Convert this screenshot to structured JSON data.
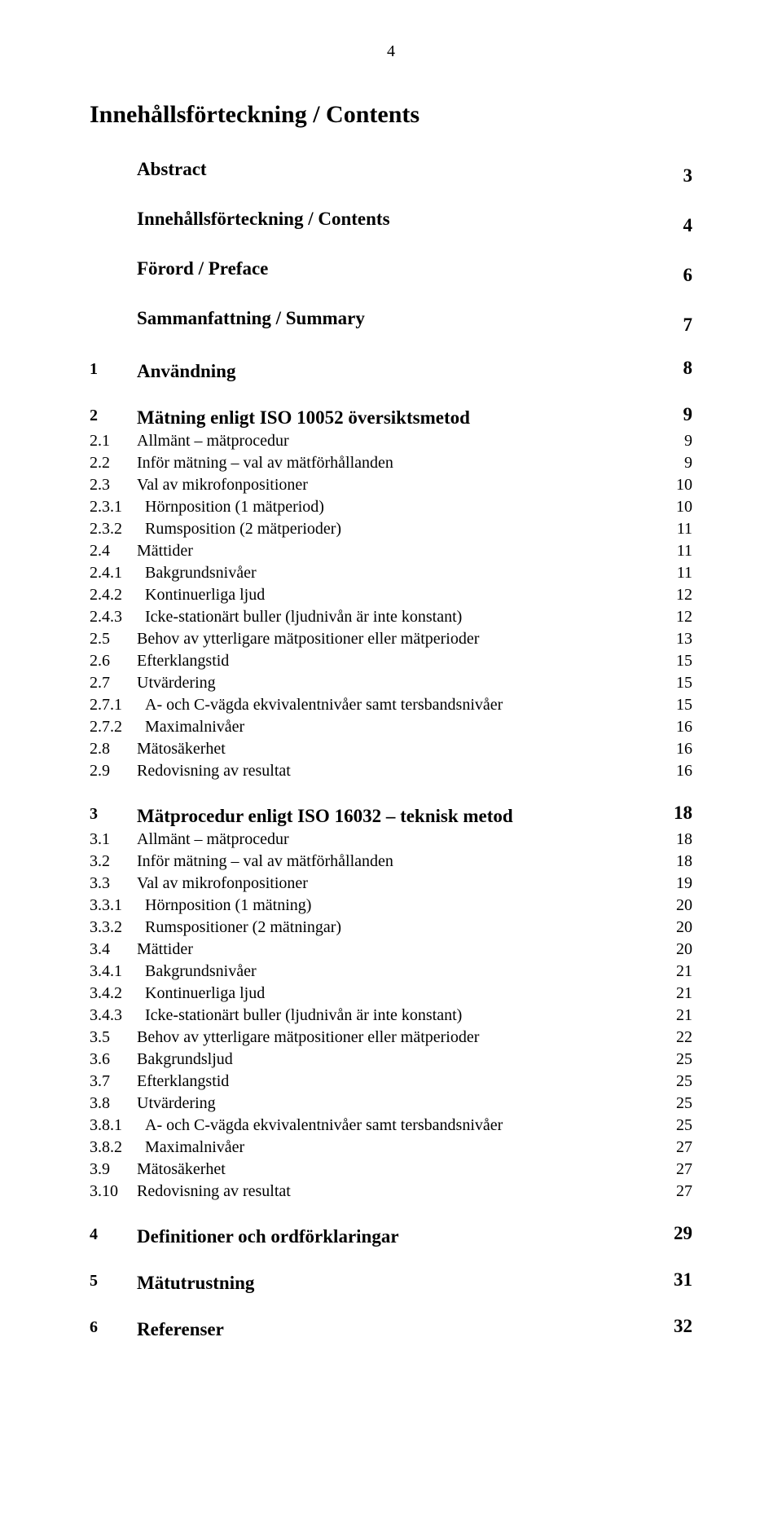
{
  "page_number": "4",
  "doc_title": "Innehållsförteckning / Contents",
  "sections": [
    {
      "style": "bold-big",
      "num": "",
      "label": "Abstract",
      "page": "3",
      "numClass": "num-w1"
    },
    {
      "style": "bold-big gap",
      "num": "",
      "label": "Innehållsförteckning / Contents",
      "page": "4",
      "numClass": "num-w1"
    },
    {
      "style": "bold-big gap",
      "num": "",
      "label": "Förord / Preface",
      "page": "6",
      "numClass": "num-w1"
    },
    {
      "style": "bold-big gap",
      "num": "",
      "label": "Sammanfattning / Summary",
      "page": "7",
      "numClass": "num-w1"
    },
    {
      "style": "bold-big gap",
      "num": "1",
      "label": "Användning",
      "page": "8",
      "numClass": "num-w1"
    },
    {
      "style": "bold-big gap",
      "num": "2",
      "label": "Mätning enligt ISO 10052 översiktsmetod",
      "page": "9",
      "numClass": "num-w1"
    },
    {
      "style": "",
      "num": "2.1",
      "label": "Allmänt – mätprocedur",
      "page": "9",
      "numClass": "num-w2"
    },
    {
      "style": "",
      "num": "2.2",
      "label": "Inför mätning – val av mätförhållanden",
      "page": "9",
      "numClass": "num-w2"
    },
    {
      "style": "",
      "num": "2.3",
      "label": "Val av mikrofonpositioner",
      "page": "10",
      "numClass": "num-w2"
    },
    {
      "style": "",
      "num": "2.3.1",
      "label": "Hörnposition (1 mätperiod)",
      "page": "10",
      "numClass": "num-w3"
    },
    {
      "style": "",
      "num": "2.3.2",
      "label": "Rumsposition (2 mätperioder)",
      "page": "11",
      "numClass": "num-w3"
    },
    {
      "style": "",
      "num": "2.4",
      "label": "Mättider",
      "page": "11",
      "numClass": "num-w2"
    },
    {
      "style": "",
      "num": "2.4.1",
      "label": "Bakgrundsnivåer",
      "page": "11",
      "numClass": "num-w3"
    },
    {
      "style": "",
      "num": "2.4.2",
      "label": "Kontinuerliga ljud",
      "page": "12",
      "numClass": "num-w3"
    },
    {
      "style": "",
      "num": "2.4.3",
      "label": "Icke-stationärt buller (ljudnivån är inte konstant)",
      "page": "12",
      "numClass": "num-w3"
    },
    {
      "style": "",
      "num": "2.5",
      "label": "Behov av ytterligare mätpositioner eller mätperioder",
      "page": "13",
      "numClass": "num-w2"
    },
    {
      "style": "",
      "num": "2.6",
      "label": "Efterklangstid",
      "page": "15",
      "numClass": "num-w2"
    },
    {
      "style": "",
      "num": "2.7",
      "label": "Utvärdering",
      "page": "15",
      "numClass": "num-w2"
    },
    {
      "style": "",
      "num": "2.7.1",
      "label": "A- och C-vägda ekvivalentnivåer samt tersbandsnivåer",
      "page": "15",
      "numClass": "num-w3"
    },
    {
      "style": "",
      "num": "2.7.2",
      "label": "Maximalnivåer",
      "page": "16",
      "numClass": "num-w3"
    },
    {
      "style": "",
      "num": "2.8",
      "label": "Mätosäkerhet",
      "page": "16",
      "numClass": "num-w2"
    },
    {
      "style": "",
      "num": "2.9",
      "label": "Redovisning av resultat",
      "page": "16",
      "numClass": "num-w2"
    },
    {
      "style": "bold-big gap",
      "num": "3",
      "label": "Mätprocedur enligt ISO 16032 – teknisk metod",
      "page": "18",
      "numClass": "num-w1"
    },
    {
      "style": "",
      "num": "3.1",
      "label": "Allmänt – mätprocedur",
      "page": "18",
      "numClass": "num-w2"
    },
    {
      "style": "",
      "num": "3.2",
      "label": "Inför mätning – val av mätförhållanden",
      "page": "18",
      "numClass": "num-w2"
    },
    {
      "style": "",
      "num": "3.3",
      "label": "Val av mikrofonpositioner",
      "page": "19",
      "numClass": "num-w2"
    },
    {
      "style": "",
      "num": "3.3.1",
      "label": "Hörnposition (1 mätning)",
      "page": "20",
      "numClass": "num-w3"
    },
    {
      "style": "",
      "num": "3.3.2",
      "label": "Rumspositioner (2 mätningar)",
      "page": "20",
      "numClass": "num-w3"
    },
    {
      "style": "",
      "num": "3.4",
      "label": "Mättider",
      "page": "20",
      "numClass": "num-w2"
    },
    {
      "style": "",
      "num": "3.4.1",
      "label": "Bakgrundsnivåer",
      "page": "21",
      "numClass": "num-w3"
    },
    {
      "style": "",
      "num": "3.4.2",
      "label": "Kontinuerliga ljud",
      "page": "21",
      "numClass": "num-w3"
    },
    {
      "style": "",
      "num": "3.4.3",
      "label": "Icke-stationärt buller (ljudnivån är inte konstant)",
      "page": "21",
      "numClass": "num-w3"
    },
    {
      "style": "",
      "num": "3.5",
      "label": "Behov av ytterligare mätpositioner eller mätperioder",
      "page": "22",
      "numClass": "num-w2"
    },
    {
      "style": "",
      "num": "3.6",
      "label": "Bakgrundsljud",
      "page": "25",
      "numClass": "num-w2"
    },
    {
      "style": "",
      "num": "3.7",
      "label": "Efterklangstid",
      "page": "25",
      "numClass": "num-w2"
    },
    {
      "style": "",
      "num": "3.8",
      "label": "Utvärdering",
      "page": "25",
      "numClass": "num-w2"
    },
    {
      "style": "",
      "num": "3.8.1",
      "label": "A- och C-vägda ekvivalentnivåer samt tersbandsnivåer",
      "page": "25",
      "numClass": "num-w3"
    },
    {
      "style": "",
      "num": "3.8.2",
      "label": "Maximalnivåer",
      "page": "27",
      "numClass": "num-w3"
    },
    {
      "style": "",
      "num": "3.9",
      "label": "Mätosäkerhet",
      "page": "27",
      "numClass": "num-w2"
    },
    {
      "style": "",
      "num": "3.10",
      "label": "Redovisning av resultat",
      "page": "27",
      "numClass": "num-w2"
    },
    {
      "style": "bold-big gap",
      "num": "4",
      "label": "Definitioner och ordförklaringar",
      "page": "29",
      "numClass": "num-w1"
    },
    {
      "style": "bold-big gap",
      "num": "5",
      "label": "Mätutrustning",
      "page": "31",
      "numClass": "num-w1"
    },
    {
      "style": "bold-big gap",
      "num": "6",
      "label": "Referenser",
      "page": "32",
      "numClass": "num-w1"
    }
  ]
}
